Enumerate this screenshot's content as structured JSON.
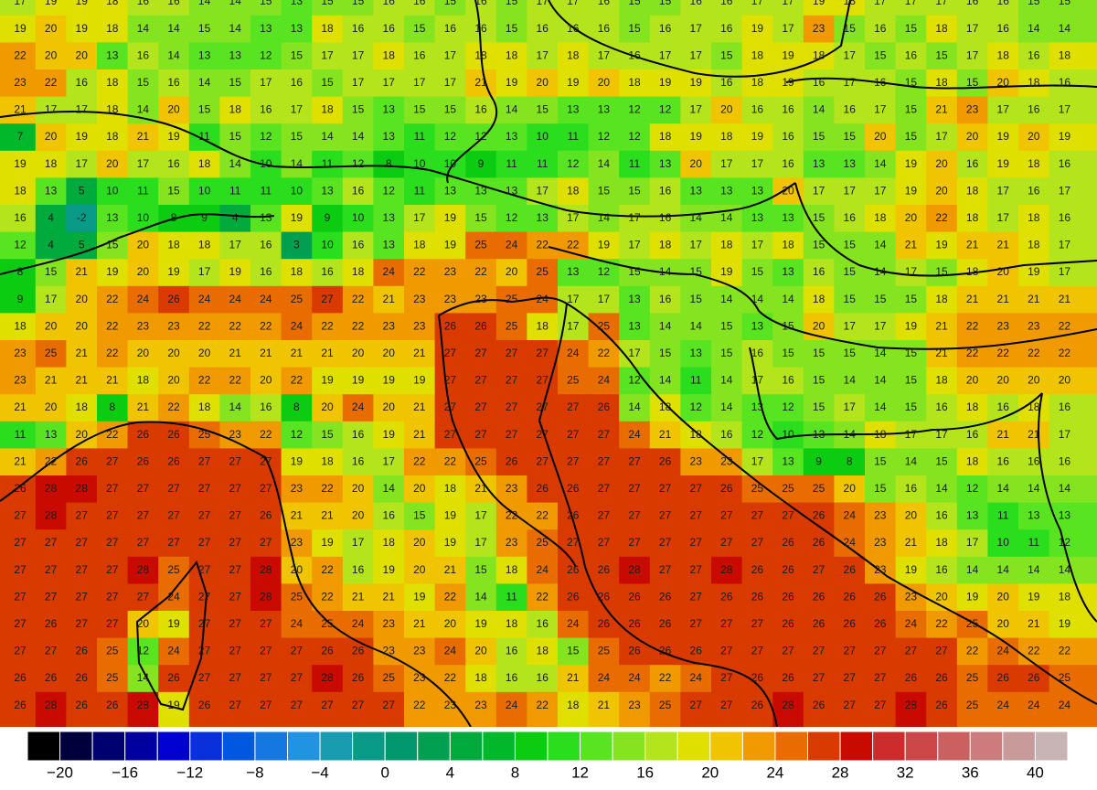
{
  "map": {
    "grid": [
      [
        17,
        19,
        19,
        18,
        16,
        16,
        14,
        14,
        15,
        13,
        15,
        15,
        16,
        16,
        15,
        16,
        15,
        17,
        17,
        16,
        15,
        15,
        16,
        16,
        17,
        17,
        19,
        18,
        17,
        17,
        17,
        16,
        16,
        15,
        15
      ],
      [
        19,
        20,
        19,
        18,
        14,
        14,
        15,
        14,
        13,
        13,
        18,
        16,
        16,
        15,
        16,
        16,
        15,
        16,
        16,
        16,
        15,
        16,
        17,
        16,
        19,
        17,
        23,
        15,
        16,
        15,
        18,
        17,
        16,
        14,
        14
      ],
      [
        22,
        20,
        20,
        13,
        16,
        14,
        13,
        13,
        12,
        15,
        17,
        17,
        18,
        16,
        17,
        18,
        18,
        17,
        18,
        17,
        16,
        17,
        17,
        15,
        18,
        19,
        18,
        17,
        15,
        16,
        15,
        17,
        18,
        16,
        18
      ],
      [
        23,
        22,
        16,
        18,
        15,
        16,
        14,
        15,
        17,
        16,
        15,
        17,
        17,
        17,
        17,
        21,
        19,
        20,
        19,
        20,
        18,
        19,
        19,
        16,
        18,
        19,
        16,
        17,
        16,
        15,
        18,
        15,
        20,
        18,
        16
      ],
      [
        21,
        17,
        17,
        18,
        14,
        20,
        15,
        18,
        16,
        17,
        18,
        15,
        13,
        15,
        15,
        16,
        14,
        15,
        13,
        13,
        12,
        12,
        17,
        20,
        16,
        16,
        14,
        16,
        17,
        15,
        21,
        23,
        17,
        16,
        17
      ],
      [
        7,
        20,
        19,
        18,
        21,
        19,
        11,
        15,
        12,
        15,
        14,
        14,
        13,
        11,
        12,
        12,
        13,
        10,
        11,
        12,
        12,
        18,
        19,
        18,
        19,
        16,
        15,
        15,
        20,
        15,
        17,
        20,
        19,
        20,
        19
      ],
      [
        19,
        18,
        17,
        20,
        17,
        16,
        18,
        14,
        10,
        14,
        11,
        12,
        8,
        10,
        10,
        9,
        11,
        11,
        12,
        14,
        11,
        13,
        20,
        17,
        17,
        16,
        13,
        13,
        14,
        19,
        20,
        16,
        19,
        18,
        16
      ],
      [
        18,
        13,
        5,
        10,
        11,
        15,
        10,
        11,
        11,
        10,
        13,
        16,
        12,
        11,
        13,
        13,
        13,
        17,
        18,
        15,
        15,
        16,
        13,
        13,
        13,
        20,
        17,
        17,
        17,
        19,
        20,
        18,
        17,
        16,
        17
      ],
      [
        16,
        4,
        -2,
        13,
        10,
        8,
        9,
        4,
        13,
        19,
        9,
        10,
        13,
        17,
        19,
        15,
        12,
        13,
        17,
        14,
        17,
        16,
        14,
        14,
        13,
        13,
        15,
        16,
        18,
        20,
        22,
        18,
        17,
        18,
        16
      ],
      [
        12,
        4,
        5,
        15,
        20,
        18,
        18,
        17,
        16,
        3,
        10,
        16,
        13,
        18,
        19,
        25,
        24,
        22,
        22,
        19,
        17,
        18,
        17,
        18,
        17,
        18,
        15,
        15,
        14,
        21,
        19,
        21,
        21,
        18,
        17
      ],
      [
        8,
        15,
        21,
        19,
        20,
        19,
        17,
        19,
        16,
        18,
        16,
        18,
        24,
        22,
        23,
        22,
        20,
        25,
        13,
        12,
        15,
        14,
        15,
        19,
        15,
        13,
        16,
        15,
        14,
        17,
        15,
        18,
        20,
        19,
        17
      ],
      [
        9,
        17,
        20,
        22,
        24,
        26,
        24,
        24,
        24,
        25,
        27,
        22,
        21,
        23,
        23,
        23,
        25,
        24,
        17,
        17,
        13,
        16,
        15,
        14,
        14,
        14,
        18,
        15,
        15,
        15,
        18,
        21,
        21,
        21,
        21
      ],
      [
        18,
        20,
        20,
        22,
        23,
        23,
        22,
        22,
        22,
        24,
        22,
        22,
        23,
        23,
        26,
        26,
        25,
        18,
        17,
        25,
        13,
        14,
        14,
        15,
        13,
        15,
        20,
        17,
        17,
        19,
        21,
        22,
        23,
        23,
        22
      ],
      [
        23,
        25,
        21,
        22,
        20,
        20,
        20,
        21,
        21,
        21,
        21,
        20,
        20,
        21,
        27,
        27,
        27,
        27,
        24,
        22,
        17,
        15,
        13,
        15,
        16,
        15,
        15,
        15,
        14,
        15,
        21,
        22,
        22,
        22,
        22
      ],
      [
        23,
        21,
        21,
        21,
        18,
        20,
        22,
        22,
        20,
        22,
        19,
        19,
        19,
        19,
        27,
        27,
        27,
        27,
        25,
        24,
        12,
        14,
        11,
        14,
        17,
        16,
        15,
        14,
        14,
        15,
        18,
        20,
        20,
        20,
        20
      ],
      [
        21,
        20,
        18,
        8,
        21,
        22,
        18,
        14,
        16,
        8,
        20,
        24,
        20,
        21,
        27,
        27,
        27,
        27,
        27,
        26,
        14,
        18,
        12,
        14,
        13,
        12,
        15,
        17,
        14,
        15,
        16,
        18,
        16,
        18,
        16
      ],
      [
        11,
        13,
        20,
        22,
        26,
        26,
        25,
        23,
        22,
        12,
        15,
        16,
        19,
        21,
        27,
        27,
        27,
        27,
        27,
        27,
        24,
        21,
        18,
        16,
        12,
        10,
        13,
        14,
        18,
        17,
        17,
        16,
        21,
        21,
        17
      ],
      [
        21,
        22,
        26,
        27,
        26,
        26,
        27,
        27,
        27,
        19,
        18,
        16,
        17,
        22,
        22,
        25,
        26,
        27,
        27,
        27,
        27,
        26,
        23,
        23,
        17,
        13,
        9,
        8,
        15,
        14,
        15,
        18,
        16,
        16,
        16
      ],
      [
        26,
        28,
        28,
        27,
        27,
        27,
        27,
        27,
        27,
        23,
        22,
        20,
        14,
        20,
        18,
        21,
        23,
        26,
        26,
        27,
        27,
        27,
        27,
        26,
        25,
        25,
        25,
        20,
        15,
        16,
        14,
        12,
        14,
        14,
        14
      ],
      [
        27,
        28,
        27,
        27,
        27,
        27,
        27,
        27,
        26,
        21,
        21,
        20,
        16,
        15,
        19,
        17,
        22,
        22,
        26,
        27,
        27,
        27,
        27,
        27,
        27,
        27,
        26,
        24,
        23,
        20,
        16,
        13,
        11,
        13,
        13
      ],
      [
        27,
        27,
        27,
        27,
        27,
        27,
        27,
        27,
        27,
        23,
        19,
        17,
        18,
        20,
        19,
        17,
        23,
        25,
        27,
        27,
        27,
        27,
        27,
        27,
        27,
        26,
        26,
        24,
        23,
        21,
        18,
        17,
        10,
        11,
        12
      ],
      [
        27,
        27,
        27,
        27,
        28,
        25,
        27,
        27,
        28,
        20,
        22,
        16,
        19,
        20,
        21,
        15,
        18,
        24,
        26,
        26,
        28,
        27,
        27,
        28,
        26,
        26,
        27,
        26,
        23,
        19,
        16,
        14,
        14,
        14,
        14
      ],
      [
        27,
        27,
        27,
        27,
        27,
        24,
        27,
        27,
        28,
        25,
        22,
        21,
        21,
        19,
        22,
        14,
        11,
        22,
        26,
        26,
        26,
        26,
        27,
        26,
        26,
        26,
        26,
        26,
        26,
        23,
        20,
        19,
        20,
        19,
        18
      ],
      [
        27,
        26,
        27,
        27,
        20,
        19,
        27,
        27,
        27,
        24,
        25,
        24,
        23,
        21,
        20,
        19,
        18,
        16,
        24,
        26,
        26,
        26,
        27,
        27,
        27,
        26,
        26,
        26,
        26,
        24,
        22,
        25,
        20,
        21,
        19
      ],
      [
        27,
        27,
        26,
        25,
        12,
        24,
        27,
        27,
        27,
        27,
        26,
        26,
        23,
        23,
        24,
        20,
        16,
        18,
        15,
        25,
        26,
        26,
        26,
        27,
        27,
        27,
        27,
        27,
        27,
        27,
        27,
        22,
        24,
        22,
        22
      ],
      [
        26,
        26,
        26,
        25,
        14,
        26,
        27,
        27,
        27,
        27,
        28,
        26,
        25,
        23,
        22,
        18,
        16,
        16,
        21,
        24,
        24,
        22,
        24,
        27,
        26,
        26,
        27,
        27,
        27,
        26,
        26,
        25,
        26,
        26,
        25
      ],
      [
        26,
        28,
        26,
        26,
        28,
        19,
        26,
        27,
        27,
        27,
        27,
        27,
        27,
        22,
        23,
        23,
        24,
        22,
        18,
        21,
        23,
        25,
        27,
        27,
        26,
        28,
        26,
        27,
        27,
        28,
        26,
        25,
        24,
        24,
        24
      ]
    ]
  },
  "colorbar": {
    "range": [
      -22,
      42
    ],
    "colors": [
      "#000000",
      "#00003c",
      "#000070",
      "#0000a0",
      "#0000d0",
      "#0a30dc",
      "#0058e0",
      "#1478e0",
      "#2094e0",
      "#1a9cb0",
      "#0a9a88",
      "#00986c",
      "#00a050",
      "#00aa3c",
      "#00b82a",
      "#0ccc12",
      "#2ade1e",
      "#58e420",
      "#84e420",
      "#b4e41c",
      "#e0e000",
      "#f0c400",
      "#f09a00",
      "#e86c00",
      "#d83a00",
      "#c80a00",
      "#cc2c2c",
      "#cc4848",
      "#cc6060",
      "#cc7c7c",
      "#c89a9a",
      "#c8b4b4"
    ],
    "ticks": [
      {
        "value": -20,
        "label": "−20"
      },
      {
        "value": -16,
        "label": "−16"
      },
      {
        "value": -12,
        "label": "−12"
      },
      {
        "value": -8,
        "label": "−8"
      },
      {
        "value": -4,
        "label": "−4"
      },
      0,
      4,
      8,
      12,
      16,
      20,
      24,
      28,
      32,
      36,
      40
    ]
  }
}
